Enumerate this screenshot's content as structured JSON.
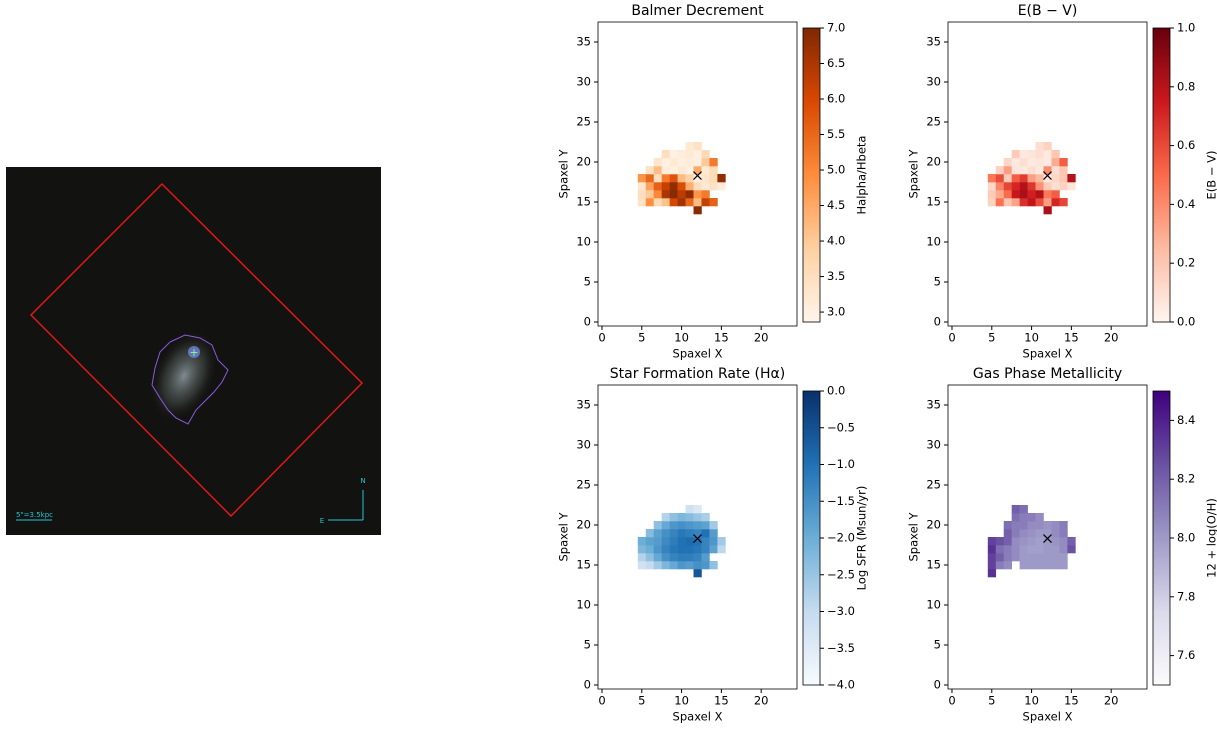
{
  "image": {
    "scale_label": "5\"=3.5kpc",
    "north": "N",
    "east": "E"
  },
  "chart_data": [
    {
      "type": "heatmap",
      "title": "Balmer Decrement",
      "xlabel": "Spaxel X",
      "ylabel": "Spaxel Y",
      "colorbar_label": "Halpha/Hbeta",
      "colormap": [
        "#fff5eb",
        "#fdd0a2",
        "#fd8d3c",
        "#d94801",
        "#7f2704"
      ],
      "x": [
        5,
        6,
        7,
        8,
        9,
        10,
        11,
        12,
        13,
        14,
        15
      ],
      "y": [
        14,
        15,
        16,
        17,
        18,
        19,
        20,
        21,
        22
      ],
      "values": [
        [
          null,
          null,
          null,
          null,
          null,
          null,
          null,
          6.9,
          null,
          null,
          null
        ],
        [
          3.4,
          4.9,
          3.6,
          4.1,
          6.0,
          6.6,
          5.5,
          4.2,
          6.2,
          5.6,
          null
        ],
        [
          3.5,
          4.0,
          5.0,
          6.5,
          6.9,
          6.3,
          6.8,
          4.8,
          5.2,
          null,
          null
        ],
        [
          3.3,
          4.6,
          5.6,
          6.2,
          6.8,
          5.9,
          4.4,
          3.5,
          3.2,
          3.4,
          3.1
        ],
        [
          4.8,
          5.5,
          3.5,
          5.2,
          5.8,
          4.2,
          3.8,
          3.1,
          3.3,
          3.6,
          6.8
        ],
        [
          null,
          3.4,
          4.2,
          3.1,
          3.0,
          3.2,
          3.0,
          4.5,
          3.2,
          3.6,
          null
        ],
        [
          null,
          null,
          3.3,
          3.0,
          3.2,
          3.0,
          3.1,
          3.0,
          4.0,
          5.2,
          null
        ],
        [
          null,
          null,
          null,
          3.5,
          3.0,
          3.1,
          3.2,
          3.0,
          3.6,
          null,
          null
        ],
        [
          null,
          null,
          null,
          null,
          null,
          null,
          3.2,
          3.4,
          null,
          null,
          null
        ]
      ],
      "marker_x": 12,
      "marker_y": 18.3,
      "xlim": [
        -0.5,
        24.5
      ],
      "ylim": [
        -0.5,
        37.5
      ],
      "xticks": [
        0,
        5,
        10,
        15,
        20
      ],
      "yticks": [
        0,
        5,
        10,
        15,
        20,
        25,
        30,
        35
      ],
      "zlim": [
        2.86,
        7.0
      ],
      "zticks": [
        {
          "value": 3,
          "label": "3.0"
        },
        3.5,
        {
          "value": 4,
          "label": "4.0"
        },
        4.5,
        {
          "value": 5,
          "label": "5.0"
        },
        5.5,
        {
          "value": 6,
          "label": "6.0"
        },
        6.5,
        {
          "value": 7,
          "label": "7.0"
        }
      ]
    },
    {
      "type": "heatmap",
      "title": "E(B − V)",
      "xlabel": "Spaxel X",
      "ylabel": "Spaxel Y",
      "colorbar_label": "E(B − V)",
      "colormap": [
        "#fff5f0",
        "#fcbba1",
        "#fb6a4a",
        "#cb181d",
        "#67000d"
      ],
      "x": [
        5,
        6,
        7,
        8,
        9,
        10,
        11,
        12,
        13,
        14,
        15
      ],
      "y": [
        14,
        15,
        16,
        17,
        18,
        19,
        20,
        21,
        22
      ],
      "values": [
        [
          null,
          null,
          null,
          null,
          null,
          null,
          null,
          0.83,
          null,
          null,
          null
        ],
        [
          0.15,
          0.48,
          0.2,
          0.32,
          0.68,
          0.78,
          0.59,
          0.34,
          0.71,
          0.61,
          null
        ],
        [
          0.18,
          0.3,
          0.5,
          0.76,
          0.83,
          0.73,
          0.81,
          0.46,
          0.54,
          null,
          null
        ],
        [
          0.13,
          0.42,
          0.61,
          0.71,
          0.81,
          0.66,
          0.38,
          0.18,
          0.1,
          0.15,
          0.07
        ],
        [
          0.46,
          0.59,
          0.18,
          0.54,
          0.64,
          0.34,
          0.25,
          0.07,
          0.13,
          0.2,
          0.81
        ],
        [
          null,
          0.15,
          0.34,
          0.07,
          0.05,
          0.1,
          0.05,
          0.4,
          0.1,
          0.2,
          null
        ],
        [
          null,
          null,
          0.13,
          0.05,
          0.1,
          0.05,
          0.07,
          0.05,
          0.3,
          0.54,
          null
        ],
        [
          null,
          null,
          null,
          0.18,
          0.05,
          0.07,
          0.1,
          0.05,
          0.2,
          null,
          null
        ],
        [
          null,
          null,
          null,
          null,
          null,
          null,
          0.1,
          0.15,
          null,
          null,
          null
        ]
      ],
      "marker_x": 12,
      "marker_y": 18.3,
      "xlim": [
        -0.5,
        24.5
      ],
      "ylim": [
        -0.5,
        37.5
      ],
      "xticks": [
        0,
        5,
        10,
        15,
        20
      ],
      "yticks": [
        0,
        5,
        10,
        15,
        20,
        25,
        30,
        35
      ],
      "zlim": [
        0,
        1
      ],
      "zticks": [
        {
          "value": 0,
          "label": "0.0"
        },
        0.2,
        0.4,
        0.6,
        0.8,
        {
          "value": 1,
          "label": "1.0"
        }
      ]
    },
    {
      "type": "heatmap",
      "title": "Star Formation Rate (Hα)",
      "xlabel": "Spaxel X",
      "ylabel": "Spaxel Y",
      "colorbar_label": "Log SFR (Msun/yr)",
      "colormap": [
        "#f7fbff",
        "#c6dbef",
        "#6baed6",
        "#2171b5",
        "#08306b"
      ],
      "x": [
        5,
        6,
        7,
        8,
        9,
        10,
        11,
        12,
        13,
        14,
        15
      ],
      "y": [
        14,
        15,
        16,
        17,
        18,
        19,
        20,
        21,
        22
      ],
      "values": [
        [
          null,
          null,
          null,
          null,
          null,
          null,
          null,
          -0.6,
          null,
          null,
          null
        ],
        [
          -3.2,
          -3.0,
          -2.6,
          -2.2,
          -1.9,
          -1.6,
          -1.7,
          -1.5,
          -1.6,
          -2.4,
          null
        ],
        [
          -2.8,
          -2.4,
          -1.9,
          -1.5,
          -1.3,
          -1.2,
          -1.2,
          -1.3,
          -1.7,
          null,
          null
        ],
        [
          -2.2,
          -2.0,
          -1.6,
          -1.3,
          -1.1,
          -1.0,
          -1.0,
          -1.1,
          -1.3,
          -1.8,
          -2.9
        ],
        [
          -2.0,
          -1.8,
          -1.7,
          -1.4,
          -1.2,
          -1.0,
          -0.9,
          -1.0,
          -1.3,
          -1.6,
          -2.6
        ],
        [
          null,
          -2.3,
          -1.8,
          -1.5,
          -1.3,
          -1.1,
          -1.2,
          -1.3,
          -1.0,
          -1.7,
          null
        ],
        [
          null,
          null,
          -2.4,
          -1.9,
          -1.6,
          -1.5,
          -1.6,
          -1.7,
          -1.8,
          -2.6,
          null
        ],
        [
          null,
          null,
          null,
          -2.8,
          -2.4,
          -2.2,
          -2.3,
          -2.5,
          -2.7,
          null,
          null
        ],
        [
          null,
          null,
          null,
          null,
          null,
          null,
          -3.2,
          -3.4,
          null,
          null,
          null
        ]
      ],
      "marker_x": 12,
      "marker_y": 18.3,
      "xlim": [
        -0.5,
        24.5
      ],
      "ylim": [
        -0.5,
        37.5
      ],
      "xticks": [
        0,
        5,
        10,
        15,
        20
      ],
      "yticks": [
        0,
        5,
        10,
        15,
        20,
        25,
        30,
        35
      ],
      "zlim": [
        -4,
        0
      ],
      "zticks": [
        {
          "value": -4,
          "label": "−4.0"
        },
        {
          "value": -3.5,
          "label": "−3.5"
        },
        {
          "value": -3,
          "label": "−3.0"
        },
        {
          "value": -2.5,
          "label": "−2.5"
        },
        {
          "value": -2,
          "label": "−2.0"
        },
        {
          "value": -1.5,
          "label": "−1.5"
        },
        {
          "value": -1,
          "label": "−1.0"
        },
        {
          "value": -0.5,
          "label": "−0.5"
        },
        {
          "value": 0,
          "label": "0.0"
        }
      ]
    },
    {
      "type": "heatmap",
      "title": "Gas Phase Metallicity",
      "xlabel": "Spaxel X",
      "ylabel": "Spaxel Y",
      "colorbar_label": "12 + log(O/H)",
      "colormap": [
        "#fcfbfd",
        "#dadaeb",
        "#9e9ac8",
        "#6a51a3",
        "#3f007d"
      ],
      "x": [
        5,
        6,
        7,
        8,
        9,
        10,
        11,
        12,
        13,
        14,
        15
      ],
      "y": [
        14,
        15,
        16,
        17,
        18,
        19,
        20,
        21,
        22
      ],
      "values": [
        [
          8.35,
          null,
          null,
          null,
          null,
          null,
          null,
          null,
          null,
          null,
          null
        ],
        [
          8.3,
          8.1,
          8.05,
          null,
          8.0,
          8.0,
          8.0,
          8.0,
          8.0,
          8.0,
          null
        ],
        [
          8.3,
          8.2,
          8.1,
          8.05,
          8.0,
          8.0,
          8.0,
          8.0,
          8.0,
          8.0,
          null
        ],
        [
          8.35,
          8.15,
          8.1,
          8.05,
          8.0,
          7.98,
          7.98,
          8.0,
          8.0,
          8.05,
          8.25
        ],
        [
          8.3,
          8.25,
          8.2,
          8.05,
          8.02,
          8.0,
          7.98,
          8.0,
          8.02,
          8.05,
          8.2
        ],
        [
          null,
          null,
          8.2,
          8.1,
          8.05,
          8.03,
          8.0,
          8.0,
          8.05,
          8.1,
          null
        ],
        [
          null,
          null,
          8.15,
          8.1,
          8.1,
          8.05,
          8.05,
          8.02,
          8.05,
          8.1,
          null
        ],
        [
          null,
          null,
          null,
          8.15,
          8.1,
          8.1,
          8.05,
          null,
          null,
          null,
          null
        ],
        [
          null,
          null,
          null,
          8.2,
          8.15,
          null,
          null,
          null,
          null,
          null,
          null
        ]
      ],
      "marker_x": 12,
      "marker_y": 18.3,
      "xlim": [
        -0.5,
        24.5
      ],
      "ylim": [
        -0.5,
        37.5
      ],
      "xticks": [
        0,
        5,
        10,
        15,
        20
      ],
      "yticks": [
        0,
        5,
        10,
        15,
        20,
        25,
        30,
        35
      ],
      "zlim": [
        7.5,
        8.5
      ],
      "zticks": [
        7.6,
        7.8,
        {
          "value": 8,
          "label": "8.0"
        },
        8.2,
        8.4
      ]
    }
  ]
}
